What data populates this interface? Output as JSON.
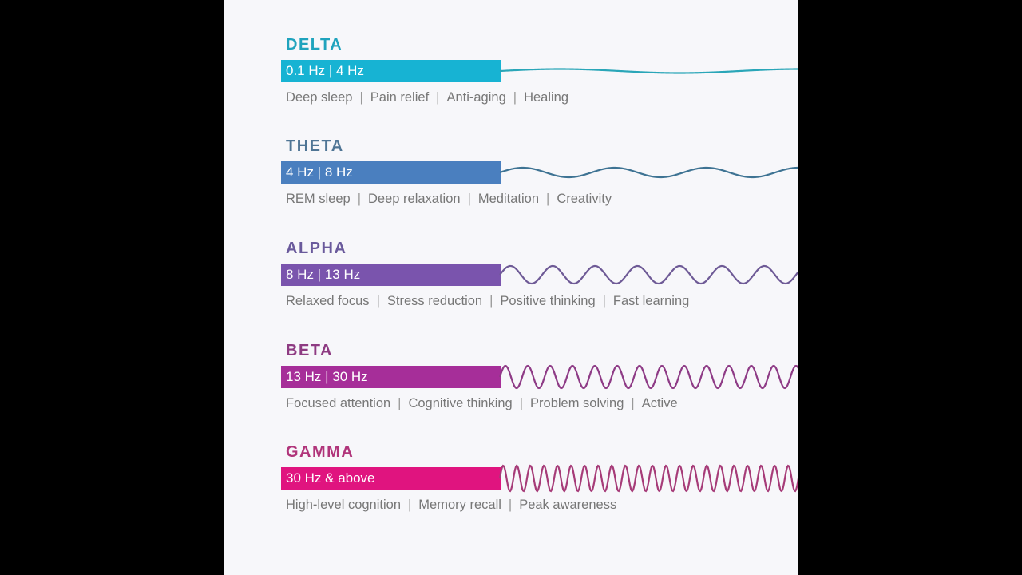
{
  "bands": [
    {
      "name": "DELTA",
      "range": "0.1 Hz | 4 Hz",
      "color": "#17b3d3",
      "title_color": "#1fa3bd",
      "wave_color": "#2aa6b8",
      "tags": [
        "Deep sleep",
        "Pain relief",
        "Anti-aging",
        "Healing"
      ]
    },
    {
      "name": "THETA",
      "range": "4 Hz | 8 Hz",
      "color": "#4a7fbf",
      "title_color": "#4f7595",
      "wave_color": "#3e7393",
      "tags": [
        "REM sleep",
        "Deep relaxation",
        "Meditation",
        "Creativity"
      ]
    },
    {
      "name": "ALPHA",
      "range": "8 Hz | 13 Hz",
      "color": "#7a54ad",
      "title_color": "#6a5a9c",
      "wave_color": "#6e5a96",
      "tags": [
        "Relaxed focus",
        "Stress reduction",
        "Positive thinking",
        "Fast learning"
      ]
    },
    {
      "name": "BETA",
      "range": "13 Hz | 30 Hz",
      "color": "#a62e99",
      "title_color": "#8e3b82",
      "wave_color": "#8e3b86",
      "tags": [
        "Focused attention",
        "Cognitive thinking",
        "Problem solving",
        "Active"
      ]
    },
    {
      "name": "GAMMA",
      "range": "30 Hz & above",
      "color": "#e0147f",
      "title_color": "#b0347a",
      "wave_color": "#a63b78",
      "tags": [
        "High-level cognition",
        "Memory recall",
        "Peak awareness"
      ]
    }
  ]
}
